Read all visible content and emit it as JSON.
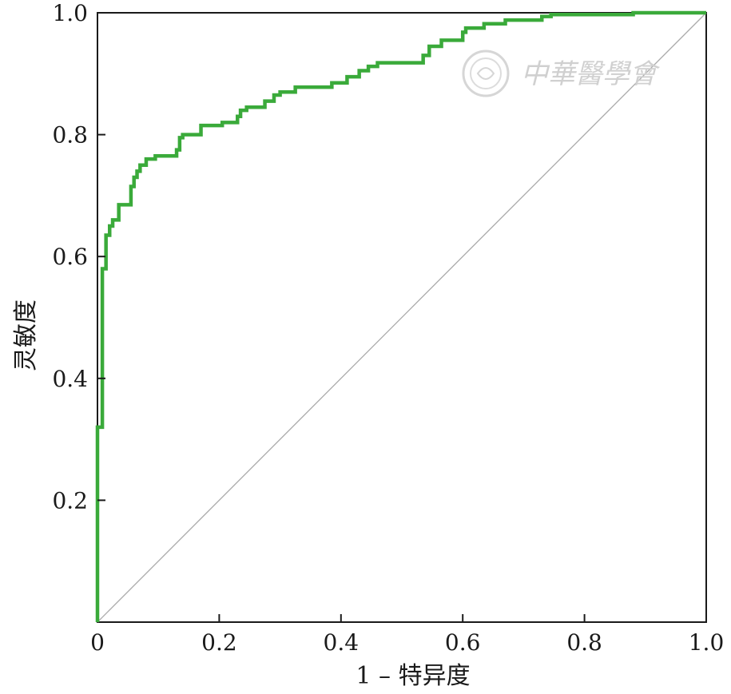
{
  "chart_data": {
    "type": "line",
    "title": "",
    "xlabel": "1 – 特异度",
    "ylabel": "灵敏度",
    "xlim": [
      0,
      1
    ],
    "ylim": [
      0,
      1
    ],
    "grid": false,
    "x_tick_labels": [
      "0",
      "0.2",
      "0.4",
      "0.6",
      "0.8",
      "1.0"
    ],
    "x_ticks": [
      0,
      0.2,
      0.4,
      0.6,
      0.8,
      1.0
    ],
    "y_tick_labels": [
      "0.2",
      "0.4",
      "0.6",
      "0.8",
      "1.0"
    ],
    "y_ticks": [
      0.2,
      0.4,
      0.6,
      0.8,
      1.0
    ],
    "series": [
      {
        "color": "#3aaa3a",
        "points": [
          [
            0.0,
            0.0
          ],
          [
            0.0,
            0.32
          ],
          [
            0.008,
            0.32
          ],
          [
            0.008,
            0.58
          ],
          [
            0.014,
            0.58
          ],
          [
            0.014,
            0.635
          ],
          [
            0.02,
            0.635
          ],
          [
            0.02,
            0.65
          ],
          [
            0.025,
            0.65
          ],
          [
            0.025,
            0.66
          ],
          [
            0.035,
            0.66
          ],
          [
            0.035,
            0.685
          ],
          [
            0.055,
            0.685
          ],
          [
            0.055,
            0.715
          ],
          [
            0.06,
            0.715
          ],
          [
            0.06,
            0.73
          ],
          [
            0.065,
            0.73
          ],
          [
            0.065,
            0.74
          ],
          [
            0.07,
            0.74
          ],
          [
            0.07,
            0.75
          ],
          [
            0.08,
            0.75
          ],
          [
            0.08,
            0.76
          ],
          [
            0.095,
            0.76
          ],
          [
            0.095,
            0.765
          ],
          [
            0.13,
            0.765
          ],
          [
            0.13,
            0.775
          ],
          [
            0.135,
            0.775
          ],
          [
            0.135,
            0.795
          ],
          [
            0.14,
            0.795
          ],
          [
            0.14,
            0.8
          ],
          [
            0.17,
            0.8
          ],
          [
            0.17,
            0.815
          ],
          [
            0.205,
            0.815
          ],
          [
            0.205,
            0.82
          ],
          [
            0.23,
            0.82
          ],
          [
            0.23,
            0.83
          ],
          [
            0.235,
            0.83
          ],
          [
            0.235,
            0.84
          ],
          [
            0.245,
            0.84
          ],
          [
            0.245,
            0.845
          ],
          [
            0.275,
            0.845
          ],
          [
            0.275,
            0.855
          ],
          [
            0.29,
            0.855
          ],
          [
            0.29,
            0.865
          ],
          [
            0.3,
            0.865
          ],
          [
            0.3,
            0.87
          ],
          [
            0.325,
            0.87
          ],
          [
            0.325,
            0.878
          ],
          [
            0.385,
            0.878
          ],
          [
            0.385,
            0.885
          ],
          [
            0.41,
            0.885
          ],
          [
            0.41,
            0.895
          ],
          [
            0.43,
            0.895
          ],
          [
            0.43,
            0.905
          ],
          [
            0.445,
            0.905
          ],
          [
            0.445,
            0.912
          ],
          [
            0.46,
            0.912
          ],
          [
            0.46,
            0.918
          ],
          [
            0.535,
            0.918
          ],
          [
            0.535,
            0.93
          ],
          [
            0.545,
            0.93
          ],
          [
            0.545,
            0.945
          ],
          [
            0.565,
            0.945
          ],
          [
            0.565,
            0.955
          ],
          [
            0.6,
            0.955
          ],
          [
            0.6,
            0.968
          ],
          [
            0.605,
            0.968
          ],
          [
            0.605,
            0.975
          ],
          [
            0.635,
            0.975
          ],
          [
            0.635,
            0.982
          ],
          [
            0.67,
            0.982
          ],
          [
            0.67,
            0.988
          ],
          [
            0.73,
            0.988
          ],
          [
            0.73,
            0.994
          ],
          [
            0.745,
            0.994
          ],
          [
            0.745,
            0.997
          ],
          [
            0.88,
            0.997
          ],
          [
            0.88,
            1.0
          ],
          [
            1.0,
            1.0
          ]
        ]
      },
      {
        "color": "#aaaaaa",
        "points": [
          [
            0,
            0
          ],
          [
            1,
            1
          ]
        ]
      }
    ]
  },
  "watermark": {
    "text": "中華醫學會",
    "emblem": "seal-emblem-icon"
  }
}
